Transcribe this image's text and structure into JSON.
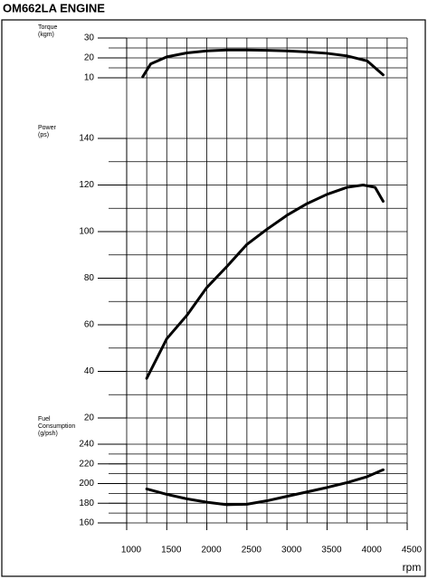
{
  "title": "OM662LA ENGINE",
  "chart_data": [
    {
      "type": "line",
      "ylabel": [
        "Torque",
        "(kgm)"
      ],
      "x": [
        1200,
        1300,
        1500,
        1750,
        2000,
        2250,
        2500,
        2750,
        3000,
        3250,
        3500,
        3750,
        4000,
        4200
      ],
      "values": [
        10.5,
        17,
        20.5,
        22.5,
        23.5,
        24,
        24,
        23.8,
        23.5,
        23,
        22.3,
        21,
        18.5,
        11.5
      ],
      "color": "#000000",
      "ylim": [
        10,
        30
      ],
      "yticks": [
        10,
        20,
        30
      ],
      "ygrid": [
        10,
        15,
        20,
        25,
        30
      ]
    },
    {
      "type": "line",
      "ylabel": [
        "Power",
        "(ps)"
      ],
      "x": [
        1250,
        1500,
        1750,
        2000,
        2250,
        2500,
        2750,
        3000,
        3250,
        3500,
        3750,
        3950,
        4100,
        4200
      ],
      "values": [
        37,
        54,
        64,
        76,
        85,
        94.5,
        101,
        107,
        112,
        116,
        119,
        120,
        119,
        113
      ],
      "color": "#000000",
      "ylim": [
        20,
        140
      ],
      "yticks": [
        20,
        40,
        60,
        80,
        100,
        120,
        140
      ],
      "ygrid": [
        20,
        30,
        40,
        50,
        60,
        70,
        80,
        90,
        100,
        110,
        120,
        130,
        140
      ]
    },
    {
      "type": "line",
      "ylabel": [
        "Fuel",
        "Consumption",
        "(g/psh)"
      ],
      "x": [
        1250,
        1500,
        1750,
        2000,
        2250,
        2500,
        2750,
        3000,
        3250,
        3500,
        3750,
        4000,
        4200
      ],
      "values": [
        194.5,
        189,
        184.5,
        181,
        178.5,
        179,
        182.5,
        187,
        191.5,
        196,
        201,
        207,
        214
      ],
      "color": "#000000",
      "ylim": [
        160,
        240
      ],
      "yticks": [
        160,
        180,
        200,
        220,
        240
      ],
      "ygrid": [
        160,
        170,
        180,
        190,
        200,
        210,
        220,
        230,
        240
      ],
      "xlabel": "rpm",
      "xlim": [
        1000,
        4500
      ],
      "xticks": [
        1000,
        1500,
        2000,
        2500,
        3000,
        3500,
        4000,
        4500
      ],
      "xgrid": [
        1000,
        1250,
        1500,
        1750,
        2000,
        2250,
        2500,
        2750,
        3000,
        3250,
        3500,
        3750,
        4000,
        4250,
        4500
      ]
    }
  ]
}
